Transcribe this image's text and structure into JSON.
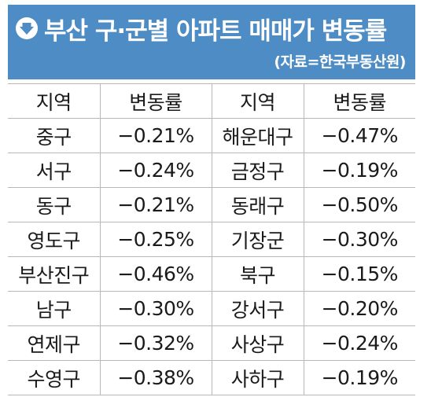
{
  "header": {
    "title": "부산 구·군별 아파트 매매가 변동률",
    "source": "(자료=한국부동산원)",
    "arrow_icon": "down-arrow-circle-icon",
    "background_color": "#4d8cc4"
  },
  "table": {
    "columns": [
      "지역",
      "변동률",
      "지역",
      "변동률"
    ],
    "rows": [
      {
        "region_a": "중구",
        "rate_a": "−0.21%",
        "region_b": "해운대구",
        "rate_b": "−0.47%"
      },
      {
        "region_a": "서구",
        "rate_a": "−0.24%",
        "region_b": "금정구",
        "rate_b": "−0.19%"
      },
      {
        "region_a": "동구",
        "rate_a": "−0.21%",
        "region_b": "동래구",
        "rate_b": "−0.50%"
      },
      {
        "region_a": "영도구",
        "rate_a": "−0.25%",
        "region_b": "기장군",
        "rate_b": "−0.30%"
      },
      {
        "region_a": "부산진구",
        "rate_a": "−0.46%",
        "region_b": "북구",
        "rate_b": "−0.15%"
      },
      {
        "region_a": "남구",
        "rate_a": "−0.30%",
        "region_b": "강서구",
        "rate_b": "−0.20%"
      },
      {
        "region_a": "연제구",
        "rate_a": "−0.32%",
        "region_b": "사상구",
        "rate_b": "−0.24%"
      },
      {
        "region_a": "수영구",
        "rate_a": "−0.38%",
        "region_b": "사하구",
        "rate_b": "−0.19%"
      }
    ]
  }
}
